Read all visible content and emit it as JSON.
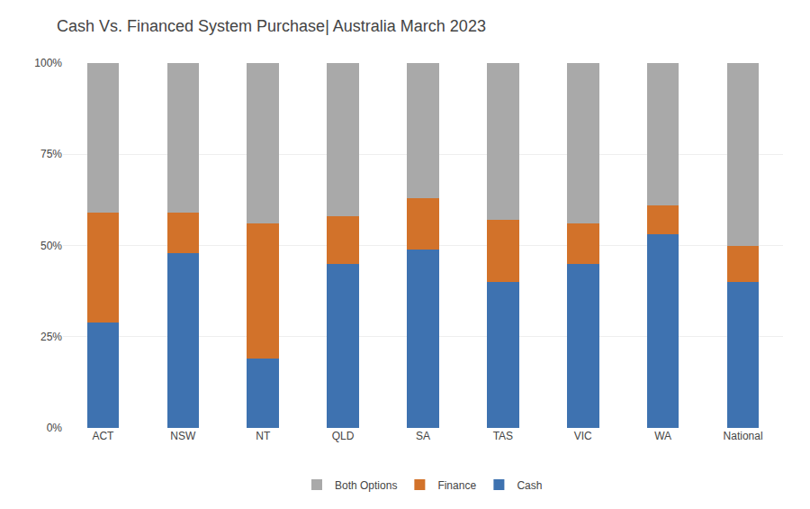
{
  "chart_data": {
    "type": "bar",
    "title": "Cash Vs. Financed System Purchase| Australia March 2023",
    "categories": [
      "ACT",
      "NSW",
      "NT",
      "QLD",
      "SA",
      "TAS",
      "VIC",
      "WA",
      "National"
    ],
    "series": [
      {
        "name": "Cash",
        "color": "#3E72B0",
        "values": [
          0.29,
          0.48,
          0.19,
          0.45,
          0.49,
          0.4,
          0.45,
          0.53,
          0.4
        ]
      },
      {
        "name": "Finance",
        "color": "#D2722A",
        "values": [
          0.3,
          0.11,
          0.37,
          0.13,
          0.14,
          0.17,
          0.11,
          0.08,
          0.1
        ]
      },
      {
        "name": "Both Options",
        "color": "#A9A9A9",
        "values": [
          0.41,
          0.41,
          0.44,
          0.42,
          0.37,
          0.43,
          0.44,
          0.39,
          0.5
        ]
      }
    ],
    "stacked": true,
    "ylim": [
      0,
      1.0
    ],
    "yticks": [
      {
        "value": 0.0,
        "label": "0%"
      },
      {
        "value": 0.25,
        "label": "25%"
      },
      {
        "value": 0.5,
        "label": "50%"
      },
      {
        "value": 0.75,
        "label": "75%"
      },
      {
        "value": 1.0,
        "label": "100%"
      }
    ],
    "grid": true,
    "legend": "bottom"
  }
}
